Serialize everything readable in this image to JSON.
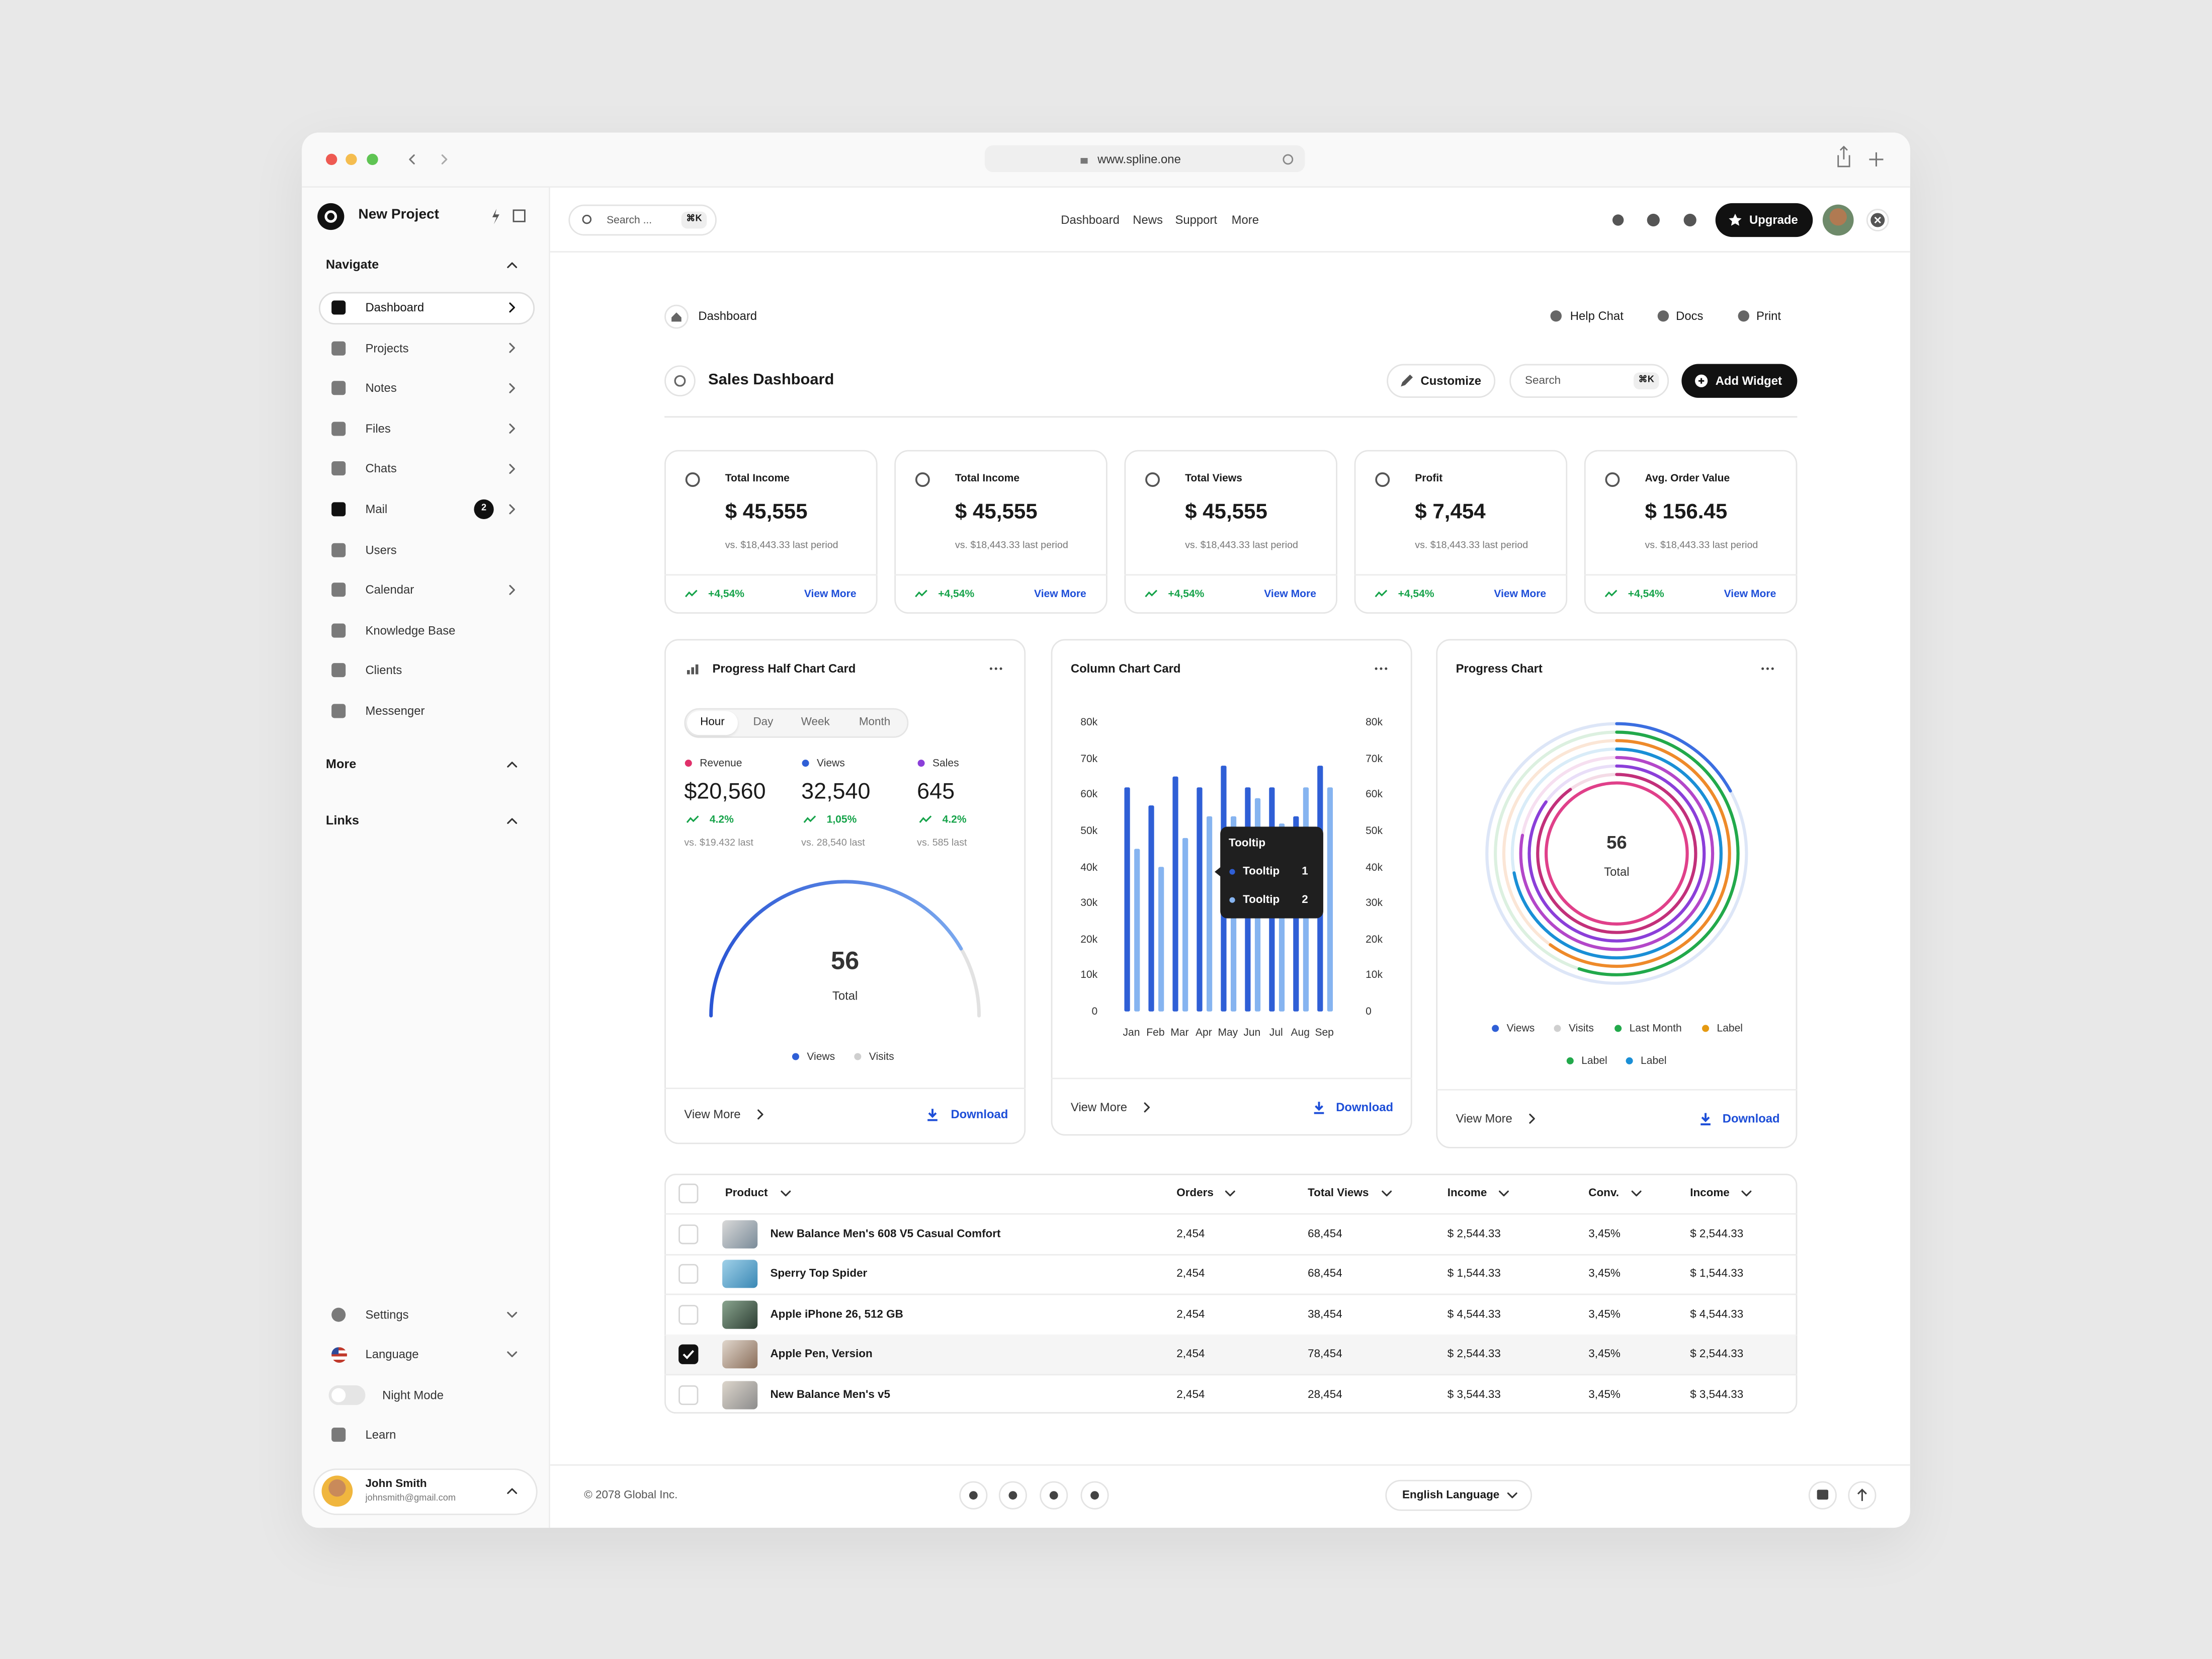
{
  "browser": {
    "url": "www.spline.one"
  },
  "sidebar": {
    "project": "New Project",
    "navigate": "Navigate",
    "nav": [
      {
        "label": "Dashboard"
      },
      {
        "label": "Projects"
      },
      {
        "label": "Notes"
      },
      {
        "label": "Files"
      },
      {
        "label": "Chats"
      },
      {
        "label": "Mail",
        "badge": "2"
      },
      {
        "label": "Users"
      },
      {
        "label": "Calendar"
      },
      {
        "label": "Knowledge Base"
      },
      {
        "label": "Clients"
      },
      {
        "label": "Messenger"
      }
    ],
    "more": "More",
    "links": "Links",
    "bottom": [
      "Settings",
      "Language",
      "Night Mode",
      "Learn"
    ],
    "user": {
      "name": "John Smith",
      "email": "johnsmith@gmail.com"
    }
  },
  "topbar": {
    "search": "Search ...",
    "shortcut": "⌘K",
    "menu": [
      "Dashboard",
      "News",
      "Support",
      "More"
    ],
    "upgrade": "Upgrade"
  },
  "breadcrumb": "Dashboard",
  "help": [
    "Help Chat",
    "Docs",
    "Print"
  ],
  "header": {
    "title": "Sales Dashboard",
    "customize": "Customize",
    "search": "Search",
    "shortcut": "⌘K",
    "add": "Add Widget"
  },
  "stats": [
    {
      "title": "Total Income",
      "value": "$ 45,555",
      "compare": "vs. $18,443.33 last period",
      "change": "+4,54%",
      "link": "View More"
    },
    {
      "title": "Total Income",
      "value": "$ 45,555",
      "compare": "vs. $18,443.33 last period",
      "change": "+4,54%",
      "link": "View More"
    },
    {
      "title": "Total Views",
      "value": "$ 45,555",
      "compare": "vs. $18,443.33 last period",
      "change": "+4,54%",
      "link": "View More"
    },
    {
      "title": "Profit",
      "value": "$ 7,454",
      "compare": "vs. $18,443.33 last period",
      "change": "+4,54%",
      "link": "View More"
    },
    {
      "title": "Avg. Order Value",
      "value": "$ 156.45",
      "compare": "vs. $18,443.33 last period",
      "change": "+4,54%",
      "link": "View More"
    }
  ],
  "half_chart": {
    "title": "Progress Half Chart Card",
    "tabs": [
      "Hour",
      "Day",
      "Week",
      "Month"
    ],
    "metrics": [
      {
        "name": "Revenue",
        "color": "#e0306a",
        "value": "$20,560",
        "change": "4.2%",
        "compare": "vs. $19.432 last"
      },
      {
        "name": "Views",
        "color": "#2f5fd6",
        "value": "32,540",
        "change": "1,05%",
        "compare": "vs. 28,540 last"
      },
      {
        "name": "Sales",
        "color": "#8b3fd9",
        "value": "645",
        "change": "4.2%",
        "compare": "vs. 585 last"
      }
    ],
    "total": 56,
    "total_label": "Total",
    "legend": [
      {
        "name": "Views",
        "color": "#2f5fd6"
      },
      {
        "name": "Visits",
        "color": "#cfcfcf"
      }
    ],
    "view_more": "View More",
    "download": "Download"
  },
  "chart_data": {
    "type": "bar",
    "title": "Column Chart Card",
    "categories": [
      "Jan",
      "Feb",
      "Mar",
      "Apr",
      "May",
      "Jun",
      "Jul",
      "Aug",
      "Sep"
    ],
    "series": [
      {
        "color": "#2f5fd6",
        "values": [
          62000,
          57000,
          65000,
          62000,
          68000,
          62000,
          62000,
          54000,
          68000
        ]
      },
      {
        "color": "#86b4f0",
        "values": [
          45000,
          40000,
          48000,
          54000,
          54000,
          59000,
          52000,
          62000,
          62000
        ]
      }
    ],
    "ylim": [
      0,
      80000
    ],
    "yticks": [
      0,
      {
        "value": 10000,
        "label": "10k"
      },
      {
        "value": 20000,
        "label": "20k"
      },
      {
        "value": 30000,
        "label": "30k"
      },
      {
        "value": 40000,
        "label": "40k"
      },
      {
        "value": 50000,
        "label": "50k"
      },
      {
        "value": 60000,
        "label": "60k"
      },
      {
        "value": 70000,
        "label": "70k"
      },
      {
        "value": 80000,
        "label": "80k"
      }
    ],
    "y2lim": [
      0,
      80000
    ],
    "y2ticks": [
      0,
      {
        "value": 10000,
        "label": "10k"
      },
      {
        "value": 20000,
        "label": "20k"
      },
      {
        "value": 30000,
        "label": "30k"
      },
      {
        "value": 40000,
        "label": "40k"
      },
      {
        "value": 50000,
        "label": "50k"
      },
      {
        "value": 60000,
        "label": "60k"
      },
      {
        "value": 70000,
        "label": "70k"
      },
      {
        "value": 80000,
        "label": "80k"
      }
    ],
    "grid": false,
    "tooltip": {
      "title": "Tooltip",
      "items": [
        {
          "label": "Tooltip",
          "value": 1
        },
        {
          "label": "Tooltip",
          "value": 2
        }
      ]
    }
  },
  "column_card": {
    "view_more": "View More",
    "download": "Download"
  },
  "progress_chart": {
    "title": "Progress Chart",
    "total": 56,
    "total_label": "Total",
    "legend": [
      {
        "name": "Views",
        "color": "#2f5fd6"
      },
      {
        "name": "Visits",
        "color": "#cfcfcf"
      },
      {
        "name": "Last Month",
        "color": "#22a94b"
      },
      {
        "name": "Label",
        "color": "#e59a12"
      },
      {
        "name": "Label",
        "color": "#22a94b"
      },
      {
        "name": "Label",
        "color": "#1a8fd6"
      }
    ],
    "view_more": "View More",
    "download": "Download"
  },
  "table": {
    "headers": [
      "Product",
      "Orders",
      "Total Views",
      "Income",
      "Conv.",
      "Income"
    ],
    "rows": [
      {
        "product": "New Balance Men's 608 V5 Casual Comfort",
        "cells": [
          "2,454",
          "68,454",
          "$ 2,544.33",
          "3,45%",
          "$ 2,544.33"
        ],
        "checked": false
      },
      {
        "product": "Sperry Top Spider",
        "cells": [
          "2,454",
          "68,454",
          "$ 1,544.33",
          "3,45%",
          "$ 1,544.33"
        ],
        "checked": false
      },
      {
        "product": "Apple iPhone 26, 512 GB",
        "cells": [
          "2,454",
          "38,454",
          "$ 4,544.33",
          "3,45%",
          "$ 4,544.33"
        ],
        "checked": false
      },
      {
        "product": "Apple Pen, Version",
        "cells": [
          "2,454",
          "78,454",
          "$ 2,544.33",
          "3,45%",
          "$ 2,544.33"
        ],
        "checked": true
      },
      {
        "product": "New Balance Men's v5",
        "cells": [
          "2,454",
          "28,454",
          "$ 3,544.33",
          "3,45%",
          "$ 3,544.33"
        ],
        "checked": false
      }
    ]
  },
  "footer": {
    "copyright": "© 2078 Global Inc.",
    "language": "English Language"
  }
}
